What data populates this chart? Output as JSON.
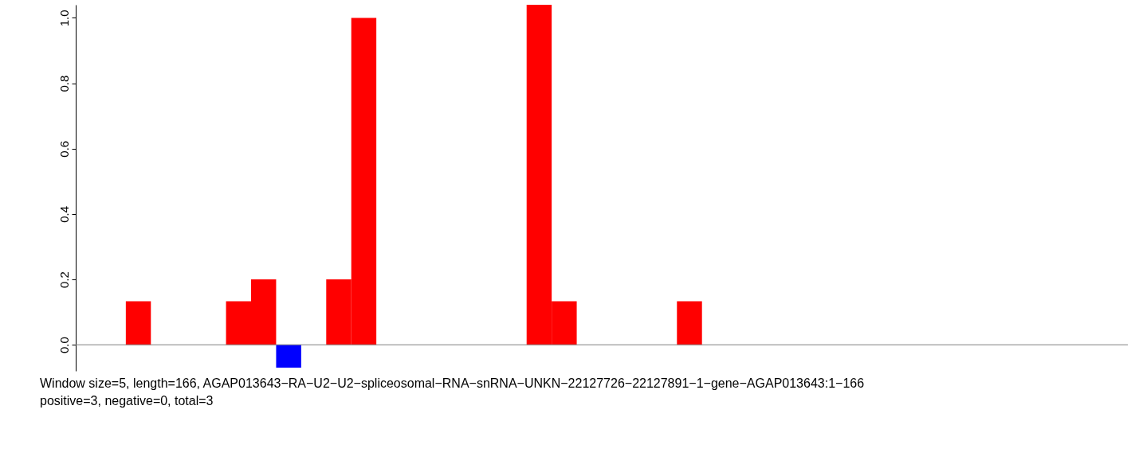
{
  "chart_data": {
    "type": "bar",
    "categories": [
      null,
      null,
      null,
      null,
      null,
      null,
      null,
      null,
      null,
      null,
      null,
      null,
      null,
      null,
      null,
      null,
      null,
      null,
      null,
      null,
      null,
      null,
      null,
      null,
      null,
      null,
      null,
      null,
      null,
      null,
      null,
      null,
      null,
      null,
      null,
      null,
      null,
      null,
      null,
      null,
      null,
      null
    ],
    "values": [
      0,
      0,
      0.133,
      0,
      0,
      0,
      0.133,
      0.2,
      -0.07,
      0,
      0.2,
      1.0,
      0,
      0,
      0,
      0,
      0,
      0,
      1.04,
      0.133,
      0,
      0,
      0,
      0,
      0.133,
      0,
      0,
      0,
      0,
      0,
      0,
      0,
      0,
      0,
      0,
      0,
      0,
      0,
      0,
      0,
      0,
      0
    ],
    "colors": [
      "#ff0000",
      "#ff0000",
      "#ff0000",
      "#ff0000",
      "#ff0000",
      "#ff0000",
      "#ff0000",
      "#ff0000",
      "#0000ff",
      "#ff0000",
      "#ff0000",
      "#ff0000",
      "#ff0000",
      "#ff0000",
      "#ff0000",
      "#ff0000",
      "#ff0000",
      "#ff0000",
      "#ff0000",
      "#ff0000",
      "#ff0000",
      "#ff0000",
      "#ff0000",
      "#ff0000",
      "#ff0000",
      "#ff0000",
      "#ff0000",
      "#ff0000",
      "#ff0000",
      "#ff0000",
      "#ff0000",
      "#ff0000",
      "#ff0000",
      "#ff0000",
      "#ff0000",
      "#ff0000",
      "#ff0000",
      "#ff0000",
      "#ff0000",
      "#ff0000",
      "#ff0000",
      "#ff0000"
    ],
    "ylim": [
      -0.08,
      1.04
    ],
    "yticks": [
      {
        "value": 0,
        "label": "0.0"
      },
      0.2,
      0.4,
      0.6,
      0.8,
      {
        "value": 1,
        "label": "1.0"
      }
    ],
    "tick_labels": "y",
    "grid": false,
    "ref_lines": [
      {
        "axis": "y",
        "value": 0,
        "color": "#808080"
      }
    ],
    "annotations": [
      "Window size=5, length=166, AGAP013643−RA−U2−U2−spliceosomal−RNA−snRNA−UNKN−22127726−22127891−1−gene−AGAP013643:1−166",
      "positive=3, negative=0, total=3"
    ]
  }
}
